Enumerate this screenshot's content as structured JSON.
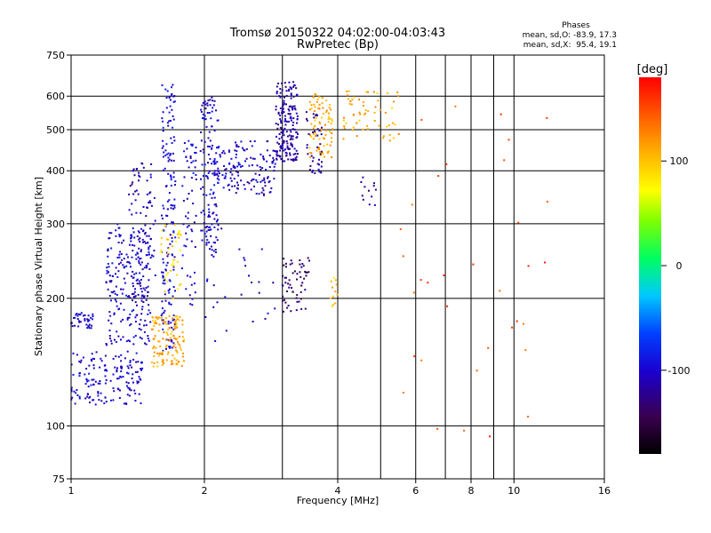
{
  "title_line1": "Tromsø 20150322 04:02:00-04:03:43",
  "title_line2": "RwPretec (Bp)",
  "stats": {
    "heading": "Phases",
    "line_o": "mean, sd,O: -83.9, 17.3",
    "line_x": "mean, sd,X:  95.4, 19.1"
  },
  "colorbar": {
    "label": "[deg]",
    "ticks": [
      "100",
      "0",
      "-100"
    ],
    "tick_values": [
      100,
      0,
      -100
    ],
    "range": [
      -180,
      180
    ]
  },
  "chart_data": {
    "type": "scatter",
    "x_scale": "log",
    "y_scale": "log",
    "xlim": [
      1,
      16
    ],
    "ylim": [
      75,
      750
    ],
    "xlabel": "Frequency [MHz]",
    "ylabel": "Stationary phase Virtual Height [km]",
    "x_ticks": [
      1,
      2,
      4,
      6,
      8,
      10,
      16
    ],
    "x_tick_labels": [
      "1",
      "2",
      "4",
      "6",
      "8",
      "10",
      "16"
    ],
    "x_minor_lines": [
      3,
      5,
      7,
      9
    ],
    "y_ticks": [
      75,
      100,
      200,
      300,
      400,
      500,
      600,
      750
    ],
    "y_tick_labels": [
      "75",
      "100",
      "200",
      "300",
      "400",
      "500",
      "600",
      "750"
    ],
    "grid": true,
    "colored_by": "phase [deg]",
    "clusters": [
      {
        "f": [
          1.0,
          1.45
        ],
        "h": [
          112,
          150
        ],
        "phase": -100,
        "n": 160
      },
      {
        "f": [
          1.0,
          1.12
        ],
        "h": [
          170,
          185
        ],
        "phase": -100,
        "n": 40
      },
      {
        "f": [
          1.2,
          1.52
        ],
        "h": [
          155,
          300
        ],
        "phase": -100,
        "n": 220
      },
      {
        "f": [
          1.35,
          1.55
        ],
        "h": [
          200,
          420
        ],
        "phase": -110,
        "n": 90
      },
      {
        "f": [
          1.6,
          1.72
        ],
        "h": [
          150,
          650
        ],
        "phase": -95,
        "n": 170
      },
      {
        "f": [
          1.52,
          1.8
        ],
        "h": [
          138,
          182
        ],
        "phase": 110,
        "n": 130
      },
      {
        "f": [
          1.58,
          1.78
        ],
        "h": [
          200,
          300
        ],
        "phase": 90,
        "n": 40
      },
      {
        "f": [
          1.78,
          1.92
        ],
        "h": [
          190,
          480
        ],
        "phase": -100,
        "n": 60
      },
      {
        "f": [
          1.96,
          2.15
        ],
        "h": [
          250,
          600
        ],
        "phase": -100,
        "n": 140
      },
      {
        "f": [
          2.1,
          2.4
        ],
        "h": [
          360,
          460
        ],
        "phase": -100,
        "n": 50
      },
      {
        "f": [
          2.3,
          2.9
        ],
        "h": [
          350,
          470
        ],
        "phase": -105,
        "n": 100
      },
      {
        "f": [
          2.9,
          3.25
        ],
        "h": [
          420,
          650
        ],
        "phase": -115,
        "n": 180
      },
      {
        "f": [
          3.0,
          3.45
        ],
        "h": [
          185,
          250
        ],
        "phase": -135,
        "n": 60
      },
      {
        "f": [
          3.45,
          3.9
        ],
        "h": [
          430,
          610
        ],
        "phase": 110,
        "n": 90
      },
      {
        "f": [
          3.4,
          3.7
        ],
        "h": [
          390,
          560
        ],
        "phase": -120,
        "n": 40
      },
      {
        "f": [
          4.1,
          5.5
        ],
        "h": [
          470,
          620
        ],
        "phase": 110,
        "n": 60
      },
      {
        "f": [
          4.5,
          4.9
        ],
        "h": [
          330,
          390
        ],
        "phase": -120,
        "n": 12
      },
      {
        "f": [
          3.85,
          4.0
        ],
        "h": [
          190,
          230
        ],
        "phase": 100,
        "n": 12
      },
      {
        "f": [
          2.0,
          3.0
        ],
        "h": [
          155,
          300
        ],
        "phase": -110,
        "n": 25
      },
      {
        "f": [
          5.5,
          12.0
        ],
        "h": [
          90,
          650
        ],
        "phase": 150,
        "n": 35
      }
    ]
  }
}
